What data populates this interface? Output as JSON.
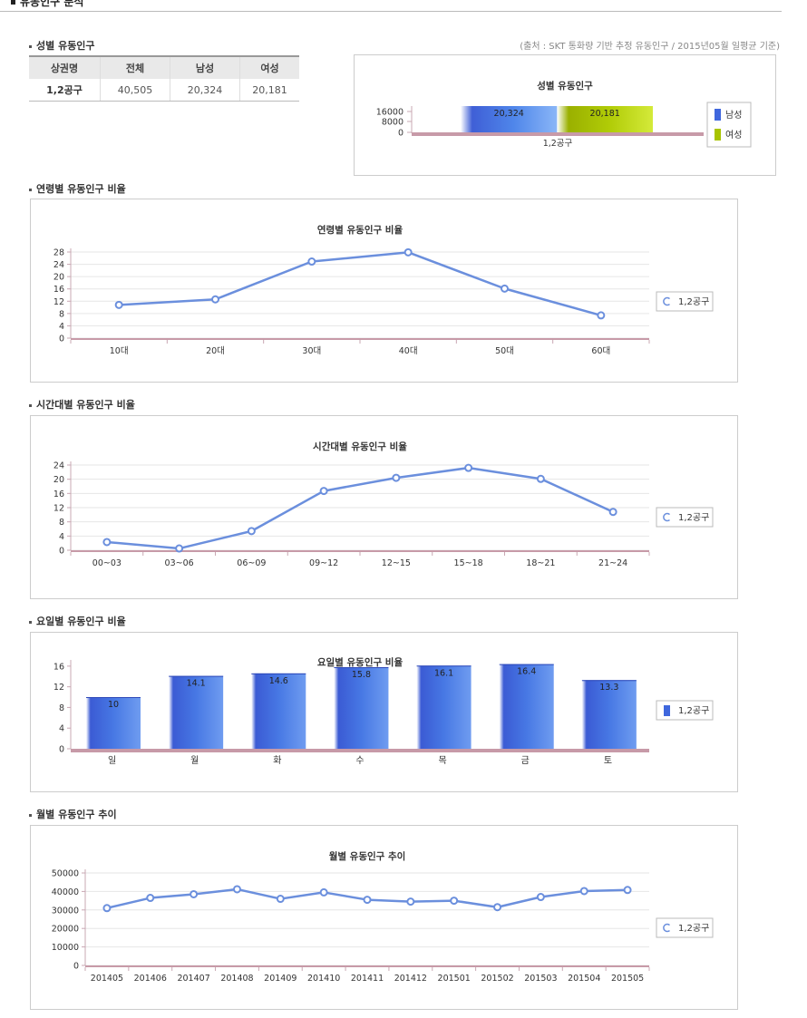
{
  "page": {
    "title": "유동인구 분석"
  },
  "source_note": "(출처 : SKT 통화량 기반 추정 유동인구 / 2015년05월 일평균 기준)",
  "gender": {
    "heading": "성별 유동인구",
    "table": {
      "headers": [
        "상권명",
        "전체",
        "남성",
        "여성"
      ],
      "rows": [
        [
          "1,2공구",
          "40,505",
          "20,324",
          "20,181"
        ]
      ]
    }
  },
  "colors": {
    "line": "#6b8fdd",
    "bar_blue": "#3f67dd",
    "bar_green": "#a8c400",
    "axis_pink": "#c79aa8"
  },
  "chart_data": [
    {
      "type": "bar",
      "orientation": "stacked-horizontal",
      "title": "성별 유동인구",
      "categories": [
        "1,2공구"
      ],
      "series": [
        {
          "name": "남성",
          "values": [
            20324
          ]
        },
        {
          "name": "여성",
          "values": [
            20181
          ]
        }
      ],
      "data_labels": [
        "20,324",
        "20,181"
      ],
      "tick_labels": [
        "16000",
        "8000",
        "0"
      ],
      "legend": "right"
    },
    {
      "type": "line",
      "heading": "연령별 유동인구 비율",
      "title": "연령별 유동인구 비율",
      "categories": [
        "10대",
        "20대",
        "30대",
        "40대",
        "50대",
        "60대"
      ],
      "series": [
        {
          "name": "1,2공구",
          "values": [
            10.8,
            12.6,
            24.9,
            27.9,
            16.1,
            7.4
          ]
        }
      ],
      "ylim": [
        0,
        28
      ],
      "yticks": [
        "28",
        "24",
        "20",
        "16",
        "12",
        "8",
        "4",
        "0"
      ],
      "legend": "right"
    },
    {
      "type": "line",
      "heading": "시간대별 유동인구 비율",
      "title": "시간대별 유동인구 비율",
      "categories": [
        "00~03",
        "03~06",
        "06~09",
        "09~12",
        "12~15",
        "15~18",
        "18~21",
        "21~24"
      ],
      "series": [
        {
          "name": "1,2공구",
          "values": [
            2.3,
            0.5,
            5.4,
            16.7,
            20.4,
            23.2,
            20.1,
            10.8
          ]
        }
      ],
      "ylim": [
        0,
        24
      ],
      "yticks": [
        "24",
        "20",
        "16",
        "12",
        "8",
        "4",
        "0"
      ],
      "legend": "right"
    },
    {
      "type": "bar",
      "heading": "요일별 유동인구 비율",
      "title": "요일별 유동인구 비율",
      "categories": [
        "일",
        "월",
        "화",
        "수",
        "목",
        "금",
        "토"
      ],
      "series": [
        {
          "name": "1,2공구",
          "values": [
            10,
            14.1,
            14.6,
            15.8,
            16.1,
            16.4,
            13.3
          ]
        }
      ],
      "data_labels": [
        "10",
        "14.1",
        "14.6",
        "15.8",
        "16.1",
        "16.4",
        "13.3"
      ],
      "ylim": [
        0,
        16.5
      ],
      "yticks": [
        "16",
        "12",
        "8",
        "4",
        "0"
      ],
      "legend": "right"
    },
    {
      "type": "line",
      "heading": "월별 유동인구 추이",
      "title": "월별 유동인구 추이",
      "categories": [
        "201405",
        "201406",
        "201407",
        "201408",
        "201409",
        "201410",
        "201411",
        "201412",
        "201501",
        "201502",
        "201503",
        "201504",
        "201505"
      ],
      "series": [
        {
          "name": "1,2공구",
          "values": [
            31000,
            36500,
            38500,
            41200,
            36000,
            39500,
            35500,
            34500,
            35000,
            31500,
            37000,
            40200,
            40800
          ]
        }
      ],
      "ylim": [
        0,
        50000
      ],
      "yticks": [
        "50000",
        "40000",
        "30000",
        "20000",
        "10000",
        "0"
      ],
      "legend": "right"
    }
  ]
}
